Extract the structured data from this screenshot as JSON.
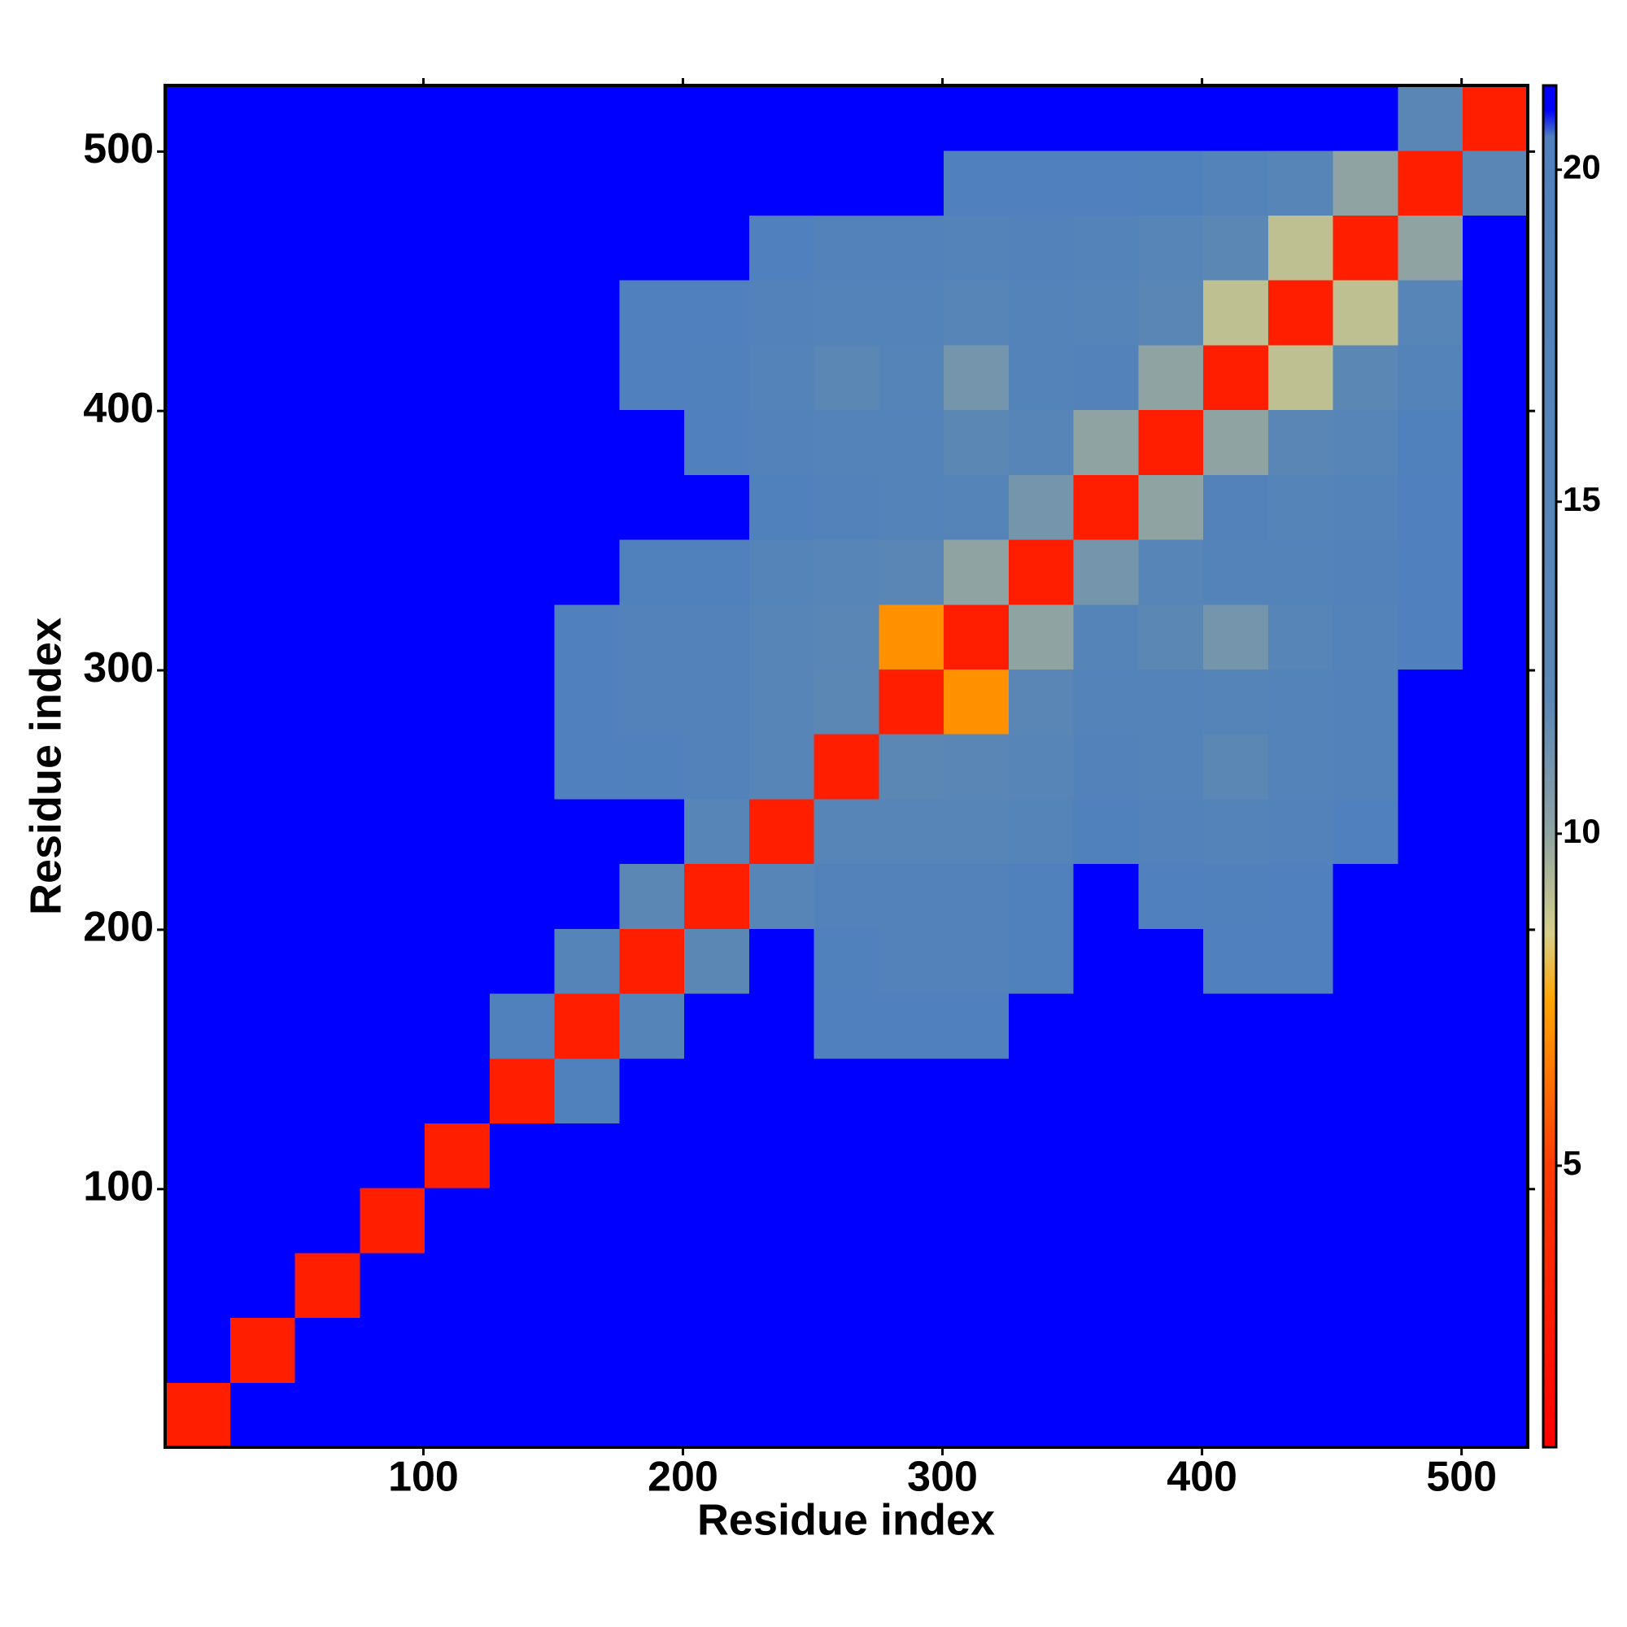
{
  "chart_data": {
    "type": "heatmap",
    "x_label": "Residue index",
    "y_label": "Residue index",
    "xlim": [
      0.5,
      525.5
    ],
    "ylim": [
      0.5,
      525.5
    ],
    "xticks": [
      100,
      200,
      300,
      400,
      500
    ],
    "yticks": [
      100,
      200,
      300,
      400,
      500
    ],
    "x_bins": [
      0.5,
      25.5,
      50.5,
      75.5,
      100.5,
      125.5,
      150.5,
      175.5,
      200.5,
      225.5,
      250.5,
      275.5,
      300.5,
      325.5,
      350.5,
      375.5,
      400.5,
      425.5,
      450.5,
      475.5,
      500.5,
      525.5
    ],
    "y_bins": [
      0.5,
      25.5,
      50.5,
      75.5,
      100.5,
      125.5,
      150.5,
      175.5,
      200.5,
      225.5,
      250.5,
      275.5,
      300.5,
      325.5,
      350.5,
      375.5,
      400.5,
      425.5,
      450.5,
      475.5,
      500.5,
      525.5
    ],
    "z": [
      [
        3,
        21,
        21,
        21,
        21,
        21,
        21,
        21,
        21,
        21,
        21,
        21,
        21,
        21,
        21,
        21,
        21,
        21,
        21,
        21,
        21
      ],
      [
        21,
        3,
        21,
        21,
        21,
        21,
        21,
        21,
        21,
        21,
        21,
        21,
        21,
        21,
        21,
        21,
        21,
        21,
        21,
        21,
        21
      ],
      [
        21,
        21,
        3,
        21,
        21,
        21,
        21,
        21,
        21,
        21,
        21,
        21,
        21,
        21,
        21,
        21,
        21,
        21,
        21,
        21,
        21
      ],
      [
        21,
        21,
        21,
        3,
        21,
        21,
        21,
        21,
        21,
        21,
        21,
        21,
        21,
        21,
        21,
        21,
        21,
        21,
        21,
        21,
        21
      ],
      [
        21,
        21,
        21,
        21,
        3,
        21,
        21,
        21,
        21,
        21,
        21,
        21,
        21,
        21,
        21,
        21,
        21,
        21,
        21,
        21,
        21
      ],
      [
        21,
        21,
        21,
        21,
        21,
        3,
        19,
        21,
        21,
        21,
        21,
        21,
        21,
        21,
        21,
        21,
        21,
        21,
        21,
        21,
        21
      ],
      [
        21,
        21,
        21,
        21,
        21,
        19,
        3,
        16,
        21,
        21,
        20,
        20,
        20,
        21,
        21,
        21,
        21,
        21,
        21,
        21,
        21
      ],
      [
        21,
        21,
        21,
        21,
        21,
        21,
        16,
        3,
        12,
        21,
        19,
        18,
        18,
        19,
        21,
        21,
        20,
        20,
        21,
        21,
        21
      ],
      [
        21,
        21,
        21,
        21,
        21,
        21,
        21,
        12,
        3,
        15,
        18,
        18,
        18,
        19,
        21,
        20,
        19,
        20,
        21,
        21,
        21
      ],
      [
        21,
        21,
        21,
        21,
        21,
        21,
        21,
        21,
        15,
        3,
        14,
        14,
        15,
        16,
        19,
        18,
        17,
        18,
        20,
        21,
        21
      ],
      [
        21,
        21,
        21,
        21,
        21,
        21,
        20,
        19,
        18,
        14,
        3,
        12,
        13,
        15,
        18,
        17,
        12,
        17,
        18,
        21,
        21
      ],
      [
        21,
        21,
        21,
        21,
        21,
        21,
        20,
        18,
        18,
        14,
        12,
        3,
        7,
        13,
        17,
        17,
        16,
        17,
        18,
        21,
        21
      ],
      [
        21,
        21,
        21,
        21,
        21,
        21,
        20,
        18,
        18,
        15,
        13,
        7,
        3,
        10,
        16,
        12,
        11,
        15,
        17,
        20,
        21
      ],
      [
        21,
        21,
        21,
        21,
        21,
        21,
        21,
        19,
        19,
        16,
        15,
        13,
        10,
        3,
        11,
        14,
        17,
        17,
        18,
        20,
        21
      ],
      [
        21,
        21,
        21,
        21,
        21,
        21,
        21,
        21,
        21,
        19,
        18,
        17,
        16,
        11,
        3,
        10,
        18,
        16,
        17,
        20,
        21
      ],
      [
        21,
        21,
        21,
        21,
        21,
        21,
        21,
        21,
        20,
        18,
        17,
        17,
        12,
        14,
        10,
        3,
        10,
        13,
        15,
        19,
        21
      ],
      [
        21,
        21,
        21,
        21,
        21,
        21,
        21,
        20,
        19,
        17,
        12,
        16,
        11,
        17,
        18,
        10,
        3,
        9,
        12,
        17,
        21
      ],
      [
        21,
        21,
        21,
        21,
        21,
        21,
        21,
        20,
        20,
        18,
        17,
        17,
        15,
        17,
        16,
        13,
        9,
        3,
        9,
        15,
        21
      ],
      [
        21,
        21,
        21,
        21,
        21,
        21,
        21,
        21,
        21,
        20,
        18,
        18,
        17,
        18,
        17,
        15,
        12,
        9,
        3,
        10,
        21
      ],
      [
        21,
        21,
        21,
        21,
        21,
        21,
        21,
        21,
        21,
        21,
        21,
        21,
        20,
        20,
        20,
        19,
        17,
        15,
        10,
        3,
        13
      ],
      [
        21,
        21,
        21,
        21,
        21,
        21,
        21,
        21,
        21,
        21,
        21,
        21,
        21,
        21,
        21,
        21,
        21,
        21,
        21,
        13,
        3
      ]
    ],
    "zlim": [
      0.76,
      21.27
    ],
    "zticks": [
      5,
      10,
      15,
      20
    ],
    "colorscale": [
      {
        "value": 0.76,
        "color": "#ff0000"
      },
      {
        "value": 5,
        "color": "#ff3a00"
      },
      {
        "value": 7.5,
        "color": "#ffa500"
      },
      {
        "value": 8.5,
        "color": "#d6cf8a"
      },
      {
        "value": 10,
        "color": "#8fa3a2"
      },
      {
        "value": 12,
        "color": "#5b87b5"
      },
      {
        "value": 20.5,
        "color": "#4f80bd"
      },
      {
        "value": 20.9,
        "color": "#0000ff"
      },
      {
        "value": 21.27,
        "color": "#0000ff"
      }
    ]
  }
}
